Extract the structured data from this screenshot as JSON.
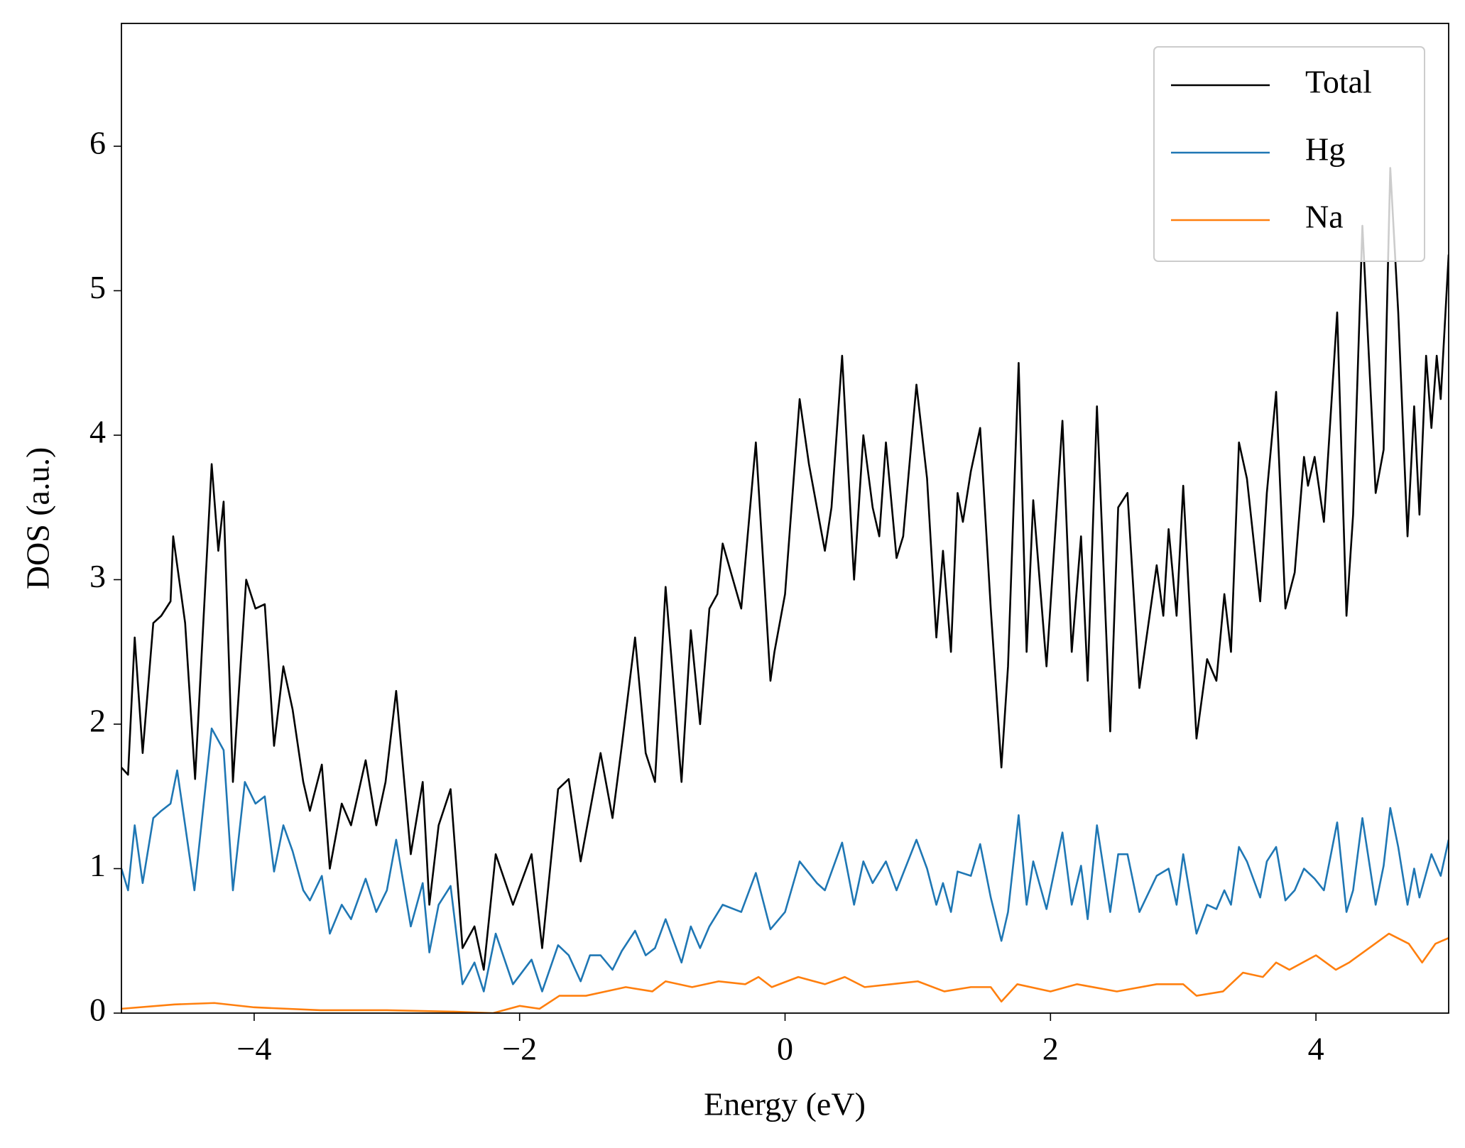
{
  "chart_data": {
    "type": "line",
    "xlabel": "Energy (eV)",
    "ylabel": "DOS (a.u.)",
    "xlim": [
      -5,
      5
    ],
    "ylim": [
      0,
      6.85
    ],
    "xticks": [
      {
        "value": -4,
        "label": "−4"
      },
      {
        "value": -2,
        "label": "−2"
      },
      0,
      2,
      4
    ],
    "yticks": [
      0,
      1,
      2,
      3,
      4,
      5,
      6
    ],
    "legend": "upper right",
    "series": [
      {
        "name": "Total",
        "color": "#000000",
        "x": [
          -5.0,
          -4.95,
          -4.9,
          -4.84,
          -4.76,
          -4.7,
          -4.63,
          -4.61,
          -4.52,
          -4.445,
          -4.32,
          -4.27,
          -4.23,
          -4.16,
          -4.06,
          -3.99,
          -3.92,
          -3.85,
          -3.78,
          -3.71,
          -3.63,
          -3.58,
          -3.49,
          -3.43,
          -3.34,
          -3.27,
          -3.16,
          -3.08,
          -3.01,
          -2.93,
          -2.82,
          -2.73,
          -2.68,
          -2.61,
          -2.52,
          -2.43,
          -2.34,
          -2.27,
          -2.18,
          -2.05,
          -1.91,
          -1.83,
          -1.71,
          -1.63,
          -1.54,
          -1.47,
          -1.39,
          -1.3,
          -1.23,
          -1.13,
          -1.05,
          -0.98,
          -0.9,
          -0.78,
          -0.71,
          -0.64,
          -0.57,
          -0.51,
          -0.47,
          -0.33,
          -0.22,
          -0.11,
          -0.08,
          0.0,
          0.11,
          0.18,
          0.24,
          0.3,
          0.35,
          0.43,
          0.52,
          0.59,
          0.66,
          0.71,
          0.76,
          0.84,
          0.89,
          0.99,
          1.07,
          1.14,
          1.19,
          1.25,
          1.3,
          1.34,
          1.4,
          1.47,
          1.55,
          1.63,
          1.68,
          1.76,
          1.82,
          1.87,
          1.97,
          2.09,
          2.16,
          2.23,
          2.28,
          2.35,
          2.45,
          2.51,
          2.58,
          2.67,
          2.8,
          2.85,
          2.89,
          2.95,
          3.0,
          3.1,
          3.18,
          3.25,
          3.31,
          3.36,
          3.42,
          3.48,
          3.58,
          3.63,
          3.7,
          3.77,
          3.84,
          3.91,
          3.94,
          3.99,
          4.06,
          4.16,
          4.23,
          4.28,
          4.35,
          4.45,
          4.51,
          4.56,
          4.62,
          4.69,
          4.74,
          4.78,
          4.83,
          4.87,
          4.91,
          4.94,
          5.0
        ],
        "values": [
          1.7,
          1.65,
          2.6,
          1.8,
          2.7,
          2.75,
          2.85,
          3.3,
          2.7,
          1.62,
          3.8,
          3.2,
          3.54,
          1.6,
          3.0,
          2.8,
          2.83,
          1.85,
          2.4,
          2.1,
          1.6,
          1.4,
          1.72,
          1.0,
          1.45,
          1.3,
          1.75,
          1.3,
          1.6,
          2.23,
          1.1,
          1.6,
          0.75,
          1.3,
          1.55,
          0.45,
          0.6,
          0.3,
          1.1,
          0.75,
          1.1,
          0.45,
          1.55,
          1.62,
          1.05,
          1.4,
          1.8,
          1.35,
          1.85,
          2.6,
          1.8,
          1.6,
          2.95,
          1.6,
          2.65,
          2.0,
          2.8,
          2.9,
          3.25,
          2.8,
          3.95,
          2.3,
          2.5,
          2.9,
          4.25,
          3.8,
          3.5,
          3.2,
          3.5,
          4.55,
          3.0,
          4.0,
          3.5,
          3.3,
          3.95,
          3.15,
          3.3,
          4.35,
          3.7,
          2.6,
          3.2,
          2.5,
          3.6,
          3.4,
          3.75,
          4.05,
          2.8,
          1.7,
          2.4,
          4.5,
          2.5,
          3.55,
          2.4,
          4.1,
          2.5,
          3.3,
          2.3,
          4.2,
          1.95,
          3.5,
          3.6,
          2.25,
          3.1,
          2.75,
          3.35,
          2.75,
          3.65,
          1.9,
          2.45,
          2.3,
          2.9,
          2.5,
          3.95,
          3.7,
          2.85,
          3.6,
          4.3,
          2.8,
          3.05,
          3.85,
          3.65,
          3.85,
          3.4,
          4.85,
          2.75,
          3.45,
          5.45,
          3.6,
          3.9,
          5.85,
          4.85,
          3.3,
          4.2,
          3.45,
          4.55,
          4.05,
          4.55,
          4.25,
          5.25
        ]
      },
      {
        "name": "Hg",
        "color": "#1f77b4",
        "x": [
          -5.0,
          -4.95,
          -4.9,
          -4.84,
          -4.76,
          -4.7,
          -4.63,
          -4.58,
          -4.52,
          -4.45,
          -4.32,
          -4.23,
          -4.16,
          -4.07,
          -3.99,
          -3.92,
          -3.85,
          -3.78,
          -3.71,
          -3.63,
          -3.58,
          -3.49,
          -3.43,
          -3.34,
          -3.27,
          -3.16,
          -3.08,
          -3.0,
          -2.93,
          -2.82,
          -2.73,
          -2.68,
          -2.61,
          -2.52,
          -2.43,
          -2.34,
          -2.27,
          -2.18,
          -2.05,
          -1.91,
          -1.83,
          -1.71,
          -1.63,
          -1.54,
          -1.47,
          -1.39,
          -1.3,
          -1.23,
          -1.13,
          -1.05,
          -0.98,
          -0.9,
          -0.78,
          -0.71,
          -0.64,
          -0.57,
          -0.47,
          -0.33,
          -0.22,
          -0.11,
          0.0,
          0.11,
          0.24,
          0.3,
          0.43,
          0.52,
          0.59,
          0.66,
          0.76,
          0.84,
          0.99,
          1.07,
          1.14,
          1.19,
          1.25,
          1.3,
          1.4,
          1.47,
          1.55,
          1.63,
          1.68,
          1.76,
          1.82,
          1.87,
          1.97,
          2.09,
          2.16,
          2.23,
          2.28,
          2.35,
          2.45,
          2.51,
          2.58,
          2.67,
          2.8,
          2.89,
          2.95,
          3.0,
          3.1,
          3.18,
          3.25,
          3.31,
          3.36,
          3.42,
          3.48,
          3.58,
          3.63,
          3.7,
          3.77,
          3.84,
          3.91,
          3.99,
          4.06,
          4.16,
          4.23,
          4.28,
          4.35,
          4.45,
          4.51,
          4.56,
          4.62,
          4.69,
          4.74,
          4.78,
          4.87,
          4.94,
          5.0
        ],
        "values": [
          1.0,
          0.85,
          1.3,
          0.9,
          1.35,
          1.4,
          1.45,
          1.68,
          1.3,
          0.85,
          1.97,
          1.82,
          0.85,
          1.6,
          1.45,
          1.5,
          0.98,
          1.3,
          1.12,
          0.85,
          0.78,
          0.95,
          0.55,
          0.75,
          0.65,
          0.93,
          0.7,
          0.85,
          1.2,
          0.6,
          0.9,
          0.42,
          0.75,
          0.88,
          0.2,
          0.35,
          0.15,
          0.55,
          0.2,
          0.37,
          0.15,
          0.47,
          0.4,
          0.22,
          0.4,
          0.4,
          0.3,
          0.43,
          0.57,
          0.4,
          0.45,
          0.65,
          0.35,
          0.6,
          0.45,
          0.6,
          0.75,
          0.7,
          0.97,
          0.58,
          0.7,
          1.05,
          0.9,
          0.85,
          1.18,
          0.75,
          1.05,
          0.9,
          1.05,
          0.85,
          1.2,
          1.0,
          0.75,
          0.9,
          0.7,
          0.98,
          0.95,
          1.17,
          0.8,
          0.5,
          0.7,
          1.37,
          0.75,
          1.05,
          0.72,
          1.25,
          0.75,
          1.02,
          0.65,
          1.3,
          0.7,
          1.1,
          1.1,
          0.7,
          0.95,
          1.0,
          0.75,
          1.1,
          0.55,
          0.75,
          0.72,
          0.85,
          0.75,
          1.15,
          1.05,
          0.8,
          1.05,
          1.15,
          0.78,
          0.85,
          1.0,
          0.93,
          0.85,
          1.32,
          0.7,
          0.85,
          1.35,
          0.75,
          1.02,
          1.42,
          1.15,
          0.75,
          1.0,
          0.8,
          1.1,
          0.95,
          1.2
        ]
      },
      {
        "name": "Na",
        "color": "#ff7f0e",
        "x": [
          -5.0,
          -4.6,
          -4.3,
          -4.0,
          -3.5,
          -3.0,
          -2.5,
          -2.2,
          -2.0,
          -1.85,
          -1.7,
          -1.5,
          -1.2,
          -1.0,
          -0.9,
          -0.7,
          -0.5,
          -0.3,
          -0.2,
          -0.1,
          0.1,
          0.3,
          0.45,
          0.6,
          0.8,
          1.0,
          1.2,
          1.4,
          1.55,
          1.63,
          1.75,
          2.0,
          2.2,
          2.5,
          2.8,
          3.0,
          3.1,
          3.3,
          3.45,
          3.6,
          3.7,
          3.8,
          4.0,
          4.15,
          4.25,
          4.4,
          4.55,
          4.7,
          4.8,
          4.9,
          5.0
        ],
        "values": [
          0.03,
          0.06,
          0.07,
          0.04,
          0.02,
          0.02,
          0.01,
          0.0,
          0.05,
          0.03,
          0.12,
          0.12,
          0.18,
          0.15,
          0.22,
          0.18,
          0.22,
          0.2,
          0.25,
          0.18,
          0.25,
          0.2,
          0.25,
          0.18,
          0.2,
          0.22,
          0.15,
          0.18,
          0.18,
          0.08,
          0.2,
          0.15,
          0.2,
          0.15,
          0.2,
          0.2,
          0.12,
          0.15,
          0.28,
          0.25,
          0.35,
          0.3,
          0.4,
          0.3,
          0.35,
          0.45,
          0.55,
          0.48,
          0.35,
          0.48,
          0.52
        ]
      }
    ]
  }
}
